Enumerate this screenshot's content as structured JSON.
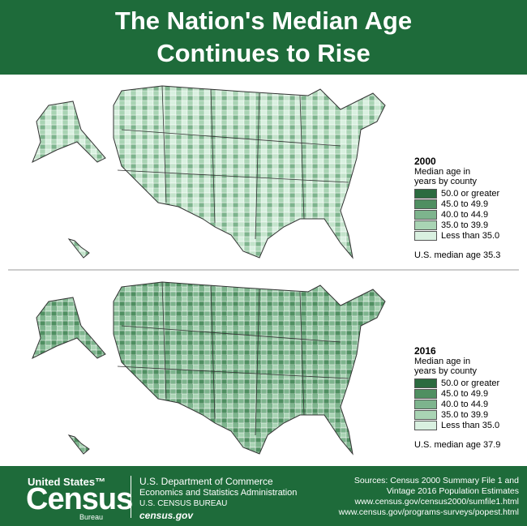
{
  "header": {
    "title_lines": [
      "The Nation's Median Age",
      "Continues to Rise"
    ]
  },
  "maps": [
    {
      "year": "2000",
      "legend_title_lines": [
        "Median age in",
        "years by county"
      ],
      "legend": [
        {
          "label": "50.0 or greater",
          "color": "#2b6b3f"
        },
        {
          "label": "45.0 to 49.9",
          "color": "#4f8f61"
        },
        {
          "label": "40.0 to 44.9",
          "color": "#7db48d"
        },
        {
          "label": "35.0 to 39.9",
          "color": "#a9d4b4"
        },
        {
          "label": "Less than 35.0",
          "color": "#d9f0e0"
        }
      ],
      "median_note": "U.S. median age 35.3"
    },
    {
      "year": "2016",
      "legend_title_lines": [
        "Median age in",
        "years by county"
      ],
      "legend": [
        {
          "label": "50.0 or greater",
          "color": "#2b6b3f"
        },
        {
          "label": "45.0 to 49.9",
          "color": "#4f8f61"
        },
        {
          "label": "40.0 to 44.9",
          "color": "#7db48d"
        },
        {
          "label": "35.0 to 39.9",
          "color": "#a9d4b4"
        },
        {
          "label": "Less than 35.0",
          "color": "#d9f0e0"
        }
      ],
      "median_note": "U.S. median age 37.9"
    }
  ],
  "footer": {
    "logo": {
      "top": "United States™",
      "main": "Census",
      "bottom": "Bureau"
    },
    "department": [
      "U.S. Department of Commerce",
      "Economics and Statistics Administration",
      "U.S. CENSUS BUREAU",
      "census.gov"
    ],
    "sources": [
      "Sources: Census 2000 Summary File 1 and",
      "Vintage 2016 Population Estimates",
      "www.census.gov/census2000/sumfile1.html",
      "www.census.gov/programs-surveys/popest.html"
    ]
  }
}
